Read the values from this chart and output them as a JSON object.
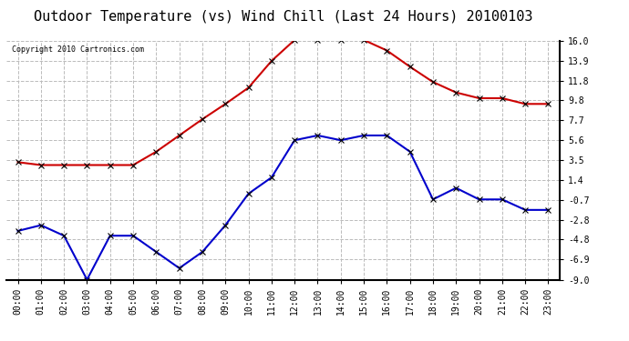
{
  "title": "Outdoor Temperature (vs) Wind Chill (Last 24 Hours) 20100103",
  "copyright_text": "Copyright 2010 Cartronics.com",
  "hours": [
    "00:00",
    "01:00",
    "02:00",
    "03:00",
    "04:00",
    "05:00",
    "06:00",
    "07:00",
    "08:00",
    "09:00",
    "10:00",
    "11:00",
    "12:00",
    "13:00",
    "14:00",
    "15:00",
    "16:00",
    "17:00",
    "18:00",
    "19:00",
    "20:00",
    "21:00",
    "22:00",
    "23:00"
  ],
  "outdoor_temp": [
    3.3,
    3.0,
    3.0,
    3.0,
    3.0,
    3.0,
    4.4,
    6.1,
    7.8,
    9.4,
    11.1,
    13.9,
    16.1,
    16.1,
    16.1,
    16.1,
    15.0,
    13.3,
    11.7,
    10.6,
    10.0,
    10.0,
    9.4,
    9.4
  ],
  "wind_chill": [
    -3.9,
    -3.3,
    -4.4,
    -9.0,
    -4.4,
    -4.4,
    -6.1,
    -7.8,
    -6.1,
    -3.3,
    0.0,
    1.7,
    5.6,
    6.1,
    5.6,
    6.1,
    6.1,
    4.4,
    -0.6,
    0.6,
    -0.6,
    -0.6,
    -1.7,
    -1.7
  ],
  "ylim": [
    -9.0,
    16.0
  ],
  "yticks": [
    16.0,
    13.9,
    11.8,
    9.8,
    7.7,
    5.6,
    3.5,
    1.4,
    -0.7,
    -2.8,
    -4.8,
    -6.9,
    -9.0
  ],
  "red_color": "#cc0000",
  "blue_color": "#0000cc",
  "grid_color": "#bbbbbb",
  "bg_color": "#ffffff",
  "title_fontsize": 11,
  "tick_fontsize": 7,
  "copyright_fontsize": 6,
  "marker_size": 4,
  "linewidth": 1.5
}
